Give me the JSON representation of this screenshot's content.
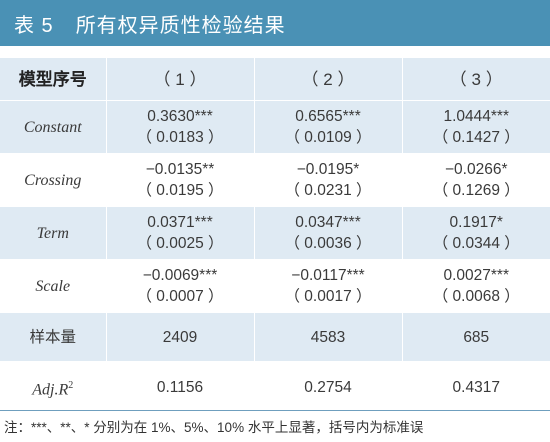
{
  "title": {
    "number": "表 5",
    "text": "所有权异质性检验结果"
  },
  "header": {
    "label": "模型序号",
    "cols": [
      "（ 1 ）",
      "（ 2 ）",
      "（ 3 ）"
    ]
  },
  "rows": [
    {
      "name": "Constant",
      "cells": [
        [
          "0.3630***",
          "（ 0.0183 ）"
        ],
        [
          "0.6565***",
          "（ 0.0109 ）"
        ],
        [
          "1.0444***",
          "（ 0.1427 ）"
        ]
      ]
    },
    {
      "name": "Crossing",
      "cells": [
        [
          "−0.0135**",
          "（ 0.0195 ）"
        ],
        [
          "−0.0195*",
          "（ 0.0231 ）"
        ],
        [
          "−0.0266*",
          "（ 0.1269 ）"
        ]
      ]
    },
    {
      "name": "Term",
      "cells": [
        [
          "0.0371***",
          "（ 0.0025 ）"
        ],
        [
          "0.0347***",
          "（ 0.0036 ）"
        ],
        [
          "0.1917*",
          "（ 0.0344 ）"
        ]
      ]
    },
    {
      "name": "Scale",
      "cells": [
        [
          "−0.0069***",
          "（ 0.0007 ）"
        ],
        [
          "−0.0117***",
          "（ 0.0017 ）"
        ],
        [
          "0.0027***",
          "（ 0.0068 ）"
        ]
      ]
    }
  ],
  "sample": {
    "label": "样本量",
    "values": [
      "2409",
      "4583",
      "685"
    ]
  },
  "adjr2": {
    "label_main": "Adj.R",
    "label_sup": "2",
    "values": [
      "0.1156",
      "0.2754",
      "0.4317"
    ]
  },
  "note": "注：***、**、* 分别为在 1%、5%、10% 水平上显著，括号内为标准误"
}
